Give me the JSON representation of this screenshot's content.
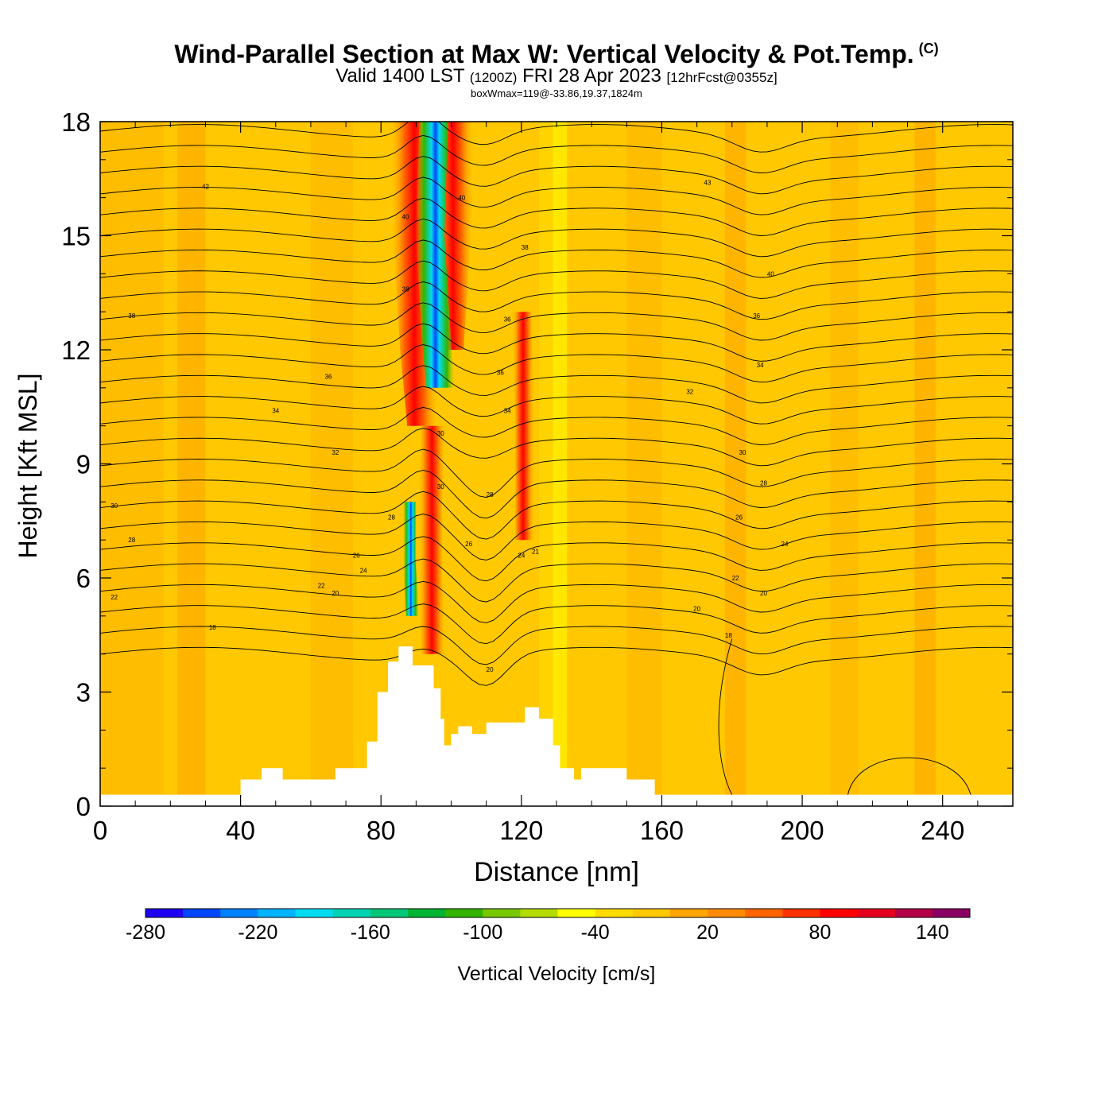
{
  "title": {
    "main": "Wind-Parallel Section at Max W: Vertical Velocity & Pot.Temp.",
    "mark": "(C)",
    "valid_prefix": "Valid 1400 LST",
    "valid_zulu": "(1200Z)",
    "valid_date": "FRI 28 Apr 2023",
    "forecast": "[12hrFcst@0355z]",
    "box": "boxWmax=119@-33.86,19.37,1824m"
  },
  "chart_data": {
    "type": "heatmap",
    "xlabel": "Distance [nm]",
    "ylabel": "Height [Kft MSL]",
    "xlim": [
      0,
      260
    ],
    "ylim": [
      0,
      18
    ],
    "x_ticks": [
      "0",
      "40",
      "80",
      "120",
      "160",
      "200",
      "240"
    ],
    "y_ticks": [
      "0",
      "3",
      "6",
      "9",
      "12",
      "15",
      "18"
    ],
    "colorbar": {
      "label": "Vertical Velocity [cm/s]",
      "tick_labels": [
        "-280",
        "-220",
        "-160",
        "-100",
        "-40",
        "20",
        "80",
        "140"
      ],
      "colors": [
        "#1e00f0",
        "#0046ff",
        "#0082ff",
        "#00b4ff",
        "#00dcf0",
        "#00d2b4",
        "#00c878",
        "#00b432",
        "#32b400",
        "#78c800",
        "#b4dc00",
        "#ffff00",
        "#ffdc00",
        "#ffc800",
        "#ffa500",
        "#ff8c00",
        "#ff6400",
        "#ff3200",
        "#ff0000",
        "#e6001e",
        "#b40046",
        "#8c0064"
      ]
    },
    "contour_labels": [
      "42",
      "43",
      "40",
      "40",
      "40",
      "38",
      "38",
      "38",
      "36",
      "36",
      "36",
      "36",
      "34",
      "34",
      "34",
      "32",
      "32",
      "30",
      "30",
      "30",
      "30",
      "28",
      "28",
      "28",
      "28",
      "26",
      "26",
      "26",
      "24",
      "24",
      "24",
      "22",
      "22",
      "22",
      "21",
      "20",
      "20",
      "20",
      "20",
      "18",
      "18"
    ],
    "terrain_kft": [
      [
        0,
        0.3
      ],
      [
        40,
        0.7
      ],
      [
        46,
        1.0
      ],
      [
        52,
        0.7
      ],
      [
        67,
        1.0
      ],
      [
        76,
        1.7
      ],
      [
        79,
        3.0
      ],
      [
        82,
        3.8
      ],
      [
        85,
        4.2
      ],
      [
        89,
        3.7
      ],
      [
        95,
        3.1
      ],
      [
        97,
        2.3
      ],
      [
        98,
        1.6
      ],
      [
        100,
        1.9
      ],
      [
        102,
        2.1
      ],
      [
        106,
        1.9
      ],
      [
        110,
        2.2
      ],
      [
        121,
        2.6
      ],
      [
        125,
        2.3
      ],
      [
        129,
        1.6
      ],
      [
        131,
        1.0
      ],
      [
        135,
        0.7
      ],
      [
        137,
        1.0
      ],
      [
        150,
        0.7
      ],
      [
        158,
        0.3
      ],
      [
        260,
        0.3
      ]
    ],
    "grid": false
  }
}
